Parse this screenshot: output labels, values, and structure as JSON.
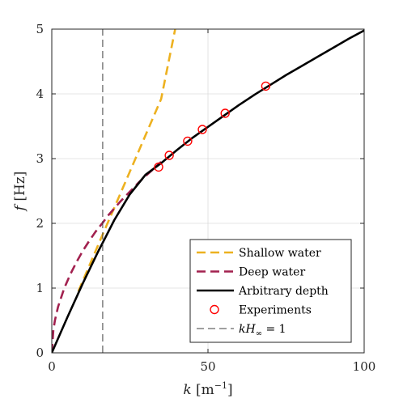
{
  "chart_data": {
    "type": "line",
    "xlabel": "k [m⁻¹]",
    "ylabel": "f [Hz]",
    "xlim": [
      0,
      100
    ],
    "ylim": [
      0,
      5
    ],
    "x_ticks": [
      "0",
      "50",
      "100"
    ],
    "y_ticks": [
      "0",
      "1",
      "2",
      "3",
      "4",
      "5"
    ],
    "grid": true,
    "legend_position": "bottom-right",
    "series": [
      {
        "name": "Shallow water",
        "style": "dashed",
        "color": "#EDB120",
        "x": [
          8.5,
          16.3,
          20,
          25,
          30,
          35,
          39.5
        ],
        "y": [
          0.95,
          1.83,
          2.24,
          2.8,
          3.36,
          3.92,
          5.0
        ]
      },
      {
        "name": "Deep water",
        "style": "dashed",
        "color": "#A2214F",
        "x": [
          0,
          0.5,
          1,
          2,
          4,
          6,
          8,
          10,
          12,
          14,
          16.3,
          18,
          20,
          22,
          25,
          28,
          30,
          33,
          35
        ],
        "y": [
          0,
          0.35,
          0.5,
          0.71,
          1.0,
          1.22,
          1.41,
          1.58,
          1.73,
          1.87,
          2.01,
          2.12,
          2.23,
          2.34,
          2.49,
          2.64,
          2.73,
          2.86,
          2.95
        ]
      },
      {
        "name": "Arbitrary depth",
        "style": "solid",
        "color": "#000000",
        "x": [
          0,
          2,
          5,
          10,
          15,
          16.3,
          20,
          25,
          30,
          35,
          40,
          45,
          50,
          55,
          60,
          65,
          70,
          75,
          80,
          85,
          90,
          95,
          100
        ],
        "y": [
          0,
          0.22,
          0.55,
          1.08,
          1.58,
          1.7,
          2.05,
          2.45,
          2.75,
          2.93,
          3.13,
          3.32,
          3.49,
          3.66,
          3.83,
          3.99,
          4.14,
          4.29,
          4.43,
          4.57,
          4.71,
          4.85,
          4.98
        ]
      },
      {
        "name": "Experiments",
        "style": "markers",
        "color": "#FF0000",
        "x": [
          34.2,
          37.6,
          43.5,
          48.2,
          55.5,
          68.5
        ],
        "y": [
          2.87,
          3.05,
          3.27,
          3.45,
          3.7,
          4.12
        ]
      },
      {
        "name": "kH∞ = 1",
        "style": "dashed-vertical",
        "color": "#000000",
        "x": [
          16.3,
          16.3
        ],
        "y": [
          0,
          5
        ]
      }
    ]
  }
}
